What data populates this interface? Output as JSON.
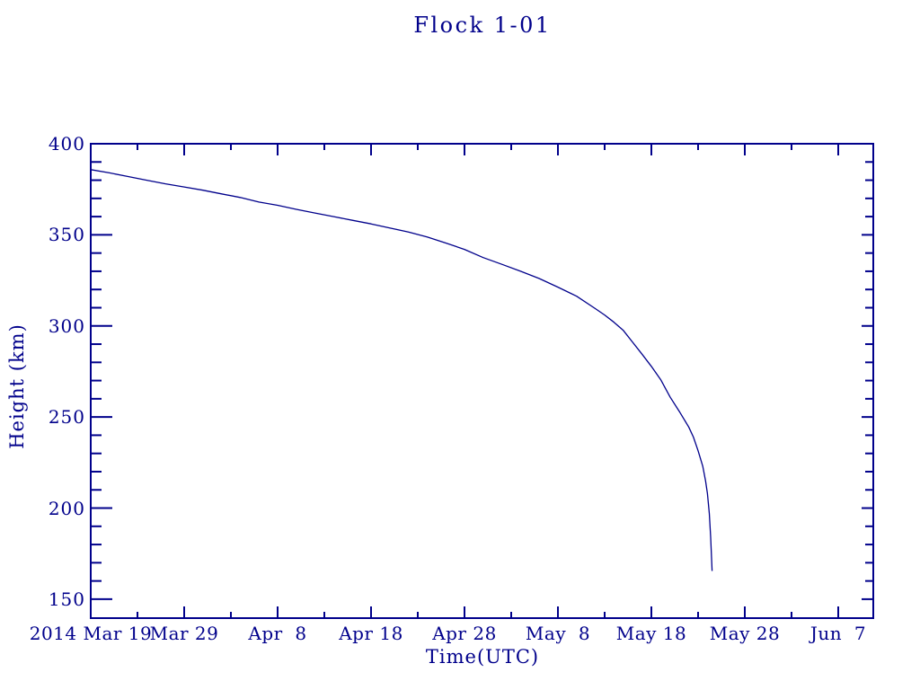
{
  "chart_data": {
    "type": "line",
    "title": "Flock 1-01",
    "xlabel": "Time(UTC)",
    "ylabel": "Height (km)",
    "background_color": "#FFFFFF",
    "axis_color": "#00008B",
    "line_color": "#00008B",
    "grid": "off",
    "legend": "none",
    "x_axis": {
      "unit": "date (UTC), days measured from 2014 Mar 19",
      "range_days": [
        0,
        83.75
      ],
      "major_tick_days": [
        0,
        10,
        20,
        30,
        40,
        50,
        60,
        70,
        80
      ],
      "major_tick_labels": [
        "2014 Mar 19",
        "Mar 29",
        "Apr  8",
        "Apr 18",
        "Apr 28",
        "May  8",
        "May 18",
        "May 28",
        "Jun  7"
      ],
      "minor_tick_days": [
        5,
        15,
        25,
        35,
        45,
        55,
        65,
        75
      ]
    },
    "y_axis": {
      "range_km": [
        139.6,
        400
      ],
      "major_ticks_km": [
        150,
        200,
        250,
        300,
        350,
        400
      ],
      "major_tick_labels": [
        "150",
        "200",
        "250",
        "300",
        "350",
        "400"
      ],
      "minor_tick_step_km": 10
    },
    "series": [
      {
        "name": "Flock 1-01",
        "points_day_height_km": [
          [
            0,
            385.8
          ],
          [
            2,
            384
          ],
          [
            4,
            382
          ],
          [
            6,
            380
          ],
          [
            8,
            378
          ],
          [
            10,
            376.3
          ],
          [
            12,
            374.5
          ],
          [
            14,
            372.5
          ],
          [
            16,
            370.5
          ],
          [
            18,
            368
          ],
          [
            20,
            366.2
          ],
          [
            22,
            364
          ],
          [
            24,
            362
          ],
          [
            26,
            360
          ],
          [
            28,
            358
          ],
          [
            30,
            356
          ],
          [
            32,
            353.8
          ],
          [
            34,
            351.5
          ],
          [
            36,
            348.8
          ],
          [
            38,
            345.5
          ],
          [
            40,
            342
          ],
          [
            42,
            337.5
          ],
          [
            44,
            333.8
          ],
          [
            46,
            330
          ],
          [
            48,
            326
          ],
          [
            50,
            321.3
          ],
          [
            52,
            316.3
          ],
          [
            54,
            309.5
          ],
          [
            55,
            306
          ],
          [
            56,
            302
          ],
          [
            57,
            297.5
          ],
          [
            58,
            291
          ],
          [
            59,
            284.5
          ],
          [
            60,
            277.8
          ],
          [
            61,
            270.5
          ],
          [
            62,
            261
          ],
          [
            63,
            253
          ],
          [
            64,
            244.5
          ],
          [
            64.5,
            239
          ],
          [
            65,
            231.5
          ],
          [
            65.5,
            223
          ],
          [
            65.8,
            215
          ],
          [
            66,
            208
          ],
          [
            66.2,
            197
          ],
          [
            66.35,
            184
          ],
          [
            66.5,
            165.5
          ]
        ]
      }
    ]
  }
}
